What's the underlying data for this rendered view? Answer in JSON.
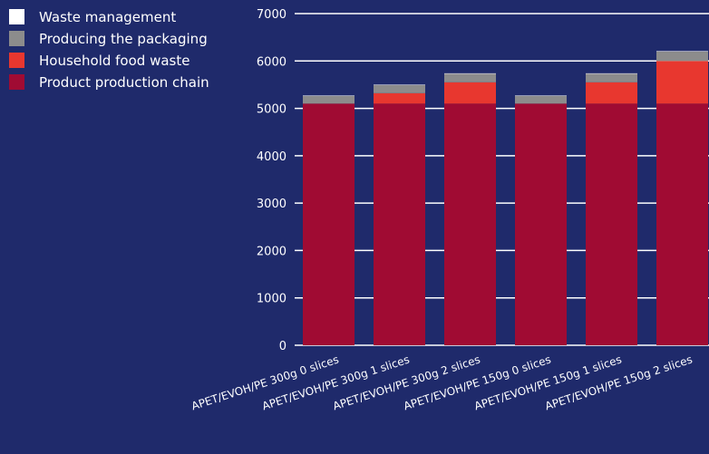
{
  "chart_data": {
    "type": "bar",
    "stacked": true,
    "categories": [
      "APET/EVOH/PE 300g 0 slices",
      "APET/EVOH/PE 300g 1 slices",
      "APET/EVOH/PE 300g 2 slices",
      "APET/EVOH/PE 150g 0 slices",
      "APET/EVOH/PE 150g 1 slices",
      "APET/EVOH/PE 150g 2 slices"
    ],
    "series": [
      {
        "name": "Product production chain",
        "color": "#a00b33",
        "values": [
          5100,
          5100,
          5100,
          5100,
          5100,
          5100
        ]
      },
      {
        "name": "Household food waste",
        "color": "#e8372f",
        "values": [
          0,
          220,
          450,
          0,
          450,
          900
        ]
      },
      {
        "name": "Producing the packaging",
        "color": "#8c8c8c",
        "values": [
          160,
          170,
          180,
          160,
          180,
          200
        ]
      },
      {
        "name": "Waste management",
        "color": "#ffffff",
        "values": [
          10,
          10,
          10,
          10,
          10,
          10
        ]
      }
    ],
    "legend_order": [
      "Waste management",
      "Producing the packaging",
      "Household food waste",
      "Product production chain"
    ],
    "y_ticks": [
      0,
      1000,
      2000,
      3000,
      4000,
      5000,
      6000,
      7000
    ],
    "ylim": [
      0,
      7000
    ],
    "grid": true,
    "legend_position": "top-left",
    "colors": {
      "background": "#1f2a6b",
      "grid": "#ffffff",
      "text": "#ffffff"
    }
  }
}
